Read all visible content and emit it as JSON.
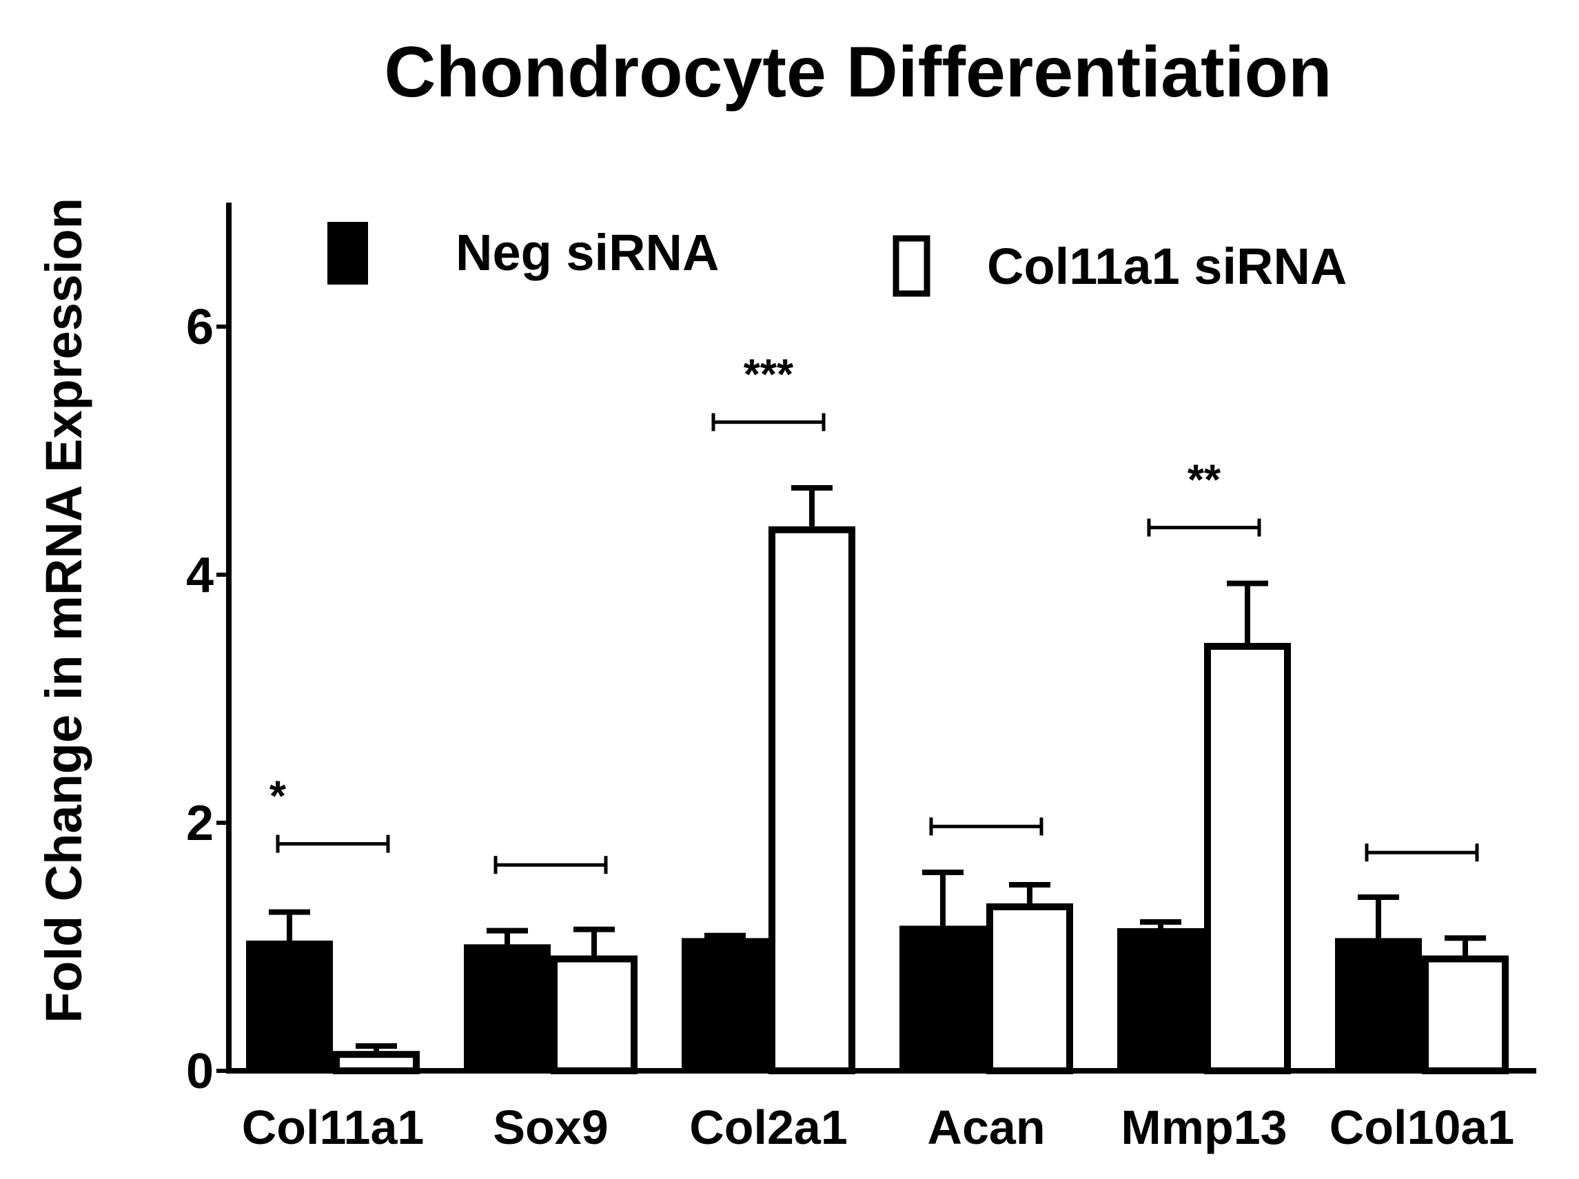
{
  "chart_data": {
    "type": "bar",
    "title": "Chondrocyte Differentiation",
    "xlabel": "",
    "ylabel": "Fold Change in mRNA Expression",
    "ylim": [
      0,
      7
    ],
    "yticks": [
      0,
      2,
      4,
      6
    ],
    "grid": false,
    "legend_placement": "top",
    "categories": [
      "Col11a1",
      "Sox9",
      "Col2a1",
      "Acan",
      "Mmp13",
      "Col10a1"
    ],
    "series": [
      {
        "name": "Neg siRNA",
        "fill": "#000000",
        "values": [
          1.05,
          1.02,
          1.07,
          1.17,
          1.15,
          1.07
        ],
        "error": [
          0.23,
          0.11,
          0.02,
          0.43,
          0.05,
          0.33
        ]
      },
      {
        "name": "Col11a1 siRNA",
        "fill": "#ffffff",
        "values": [
          0.16,
          0.93,
          4.39,
          1.35,
          3.45,
          0.93
        ],
        "error": [
          0.04,
          0.21,
          0.31,
          0.15,
          0.48,
          0.14
        ]
      }
    ],
    "significance": [
      {
        "category": "Col11a1",
        "level": 1.83,
        "label": "*"
      },
      {
        "category": "Sox9",
        "level": 1.66,
        "label": ""
      },
      {
        "category": "Col2a1",
        "level": 5.23,
        "label": "***"
      },
      {
        "category": "Acan",
        "level": 1.97,
        "label": ""
      },
      {
        "category": "Mmp13",
        "level": 4.38,
        "label": "**"
      },
      {
        "category": "Col10a1",
        "level": 1.76,
        "label": ""
      }
    ]
  }
}
